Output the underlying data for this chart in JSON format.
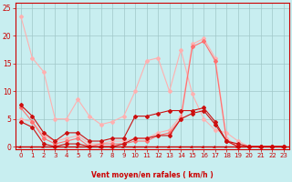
{
  "background_color": "#c8eef0",
  "grid_color": "#a0c8c8",
  "line_color_light_pink": "#ffb0b0",
  "line_color_med_pink": "#ff7070",
  "line_color_dark_red": "#cc1010",
  "xlabel": "Vent moyen/en rafales ( km/h )",
  "xlabel_color": "#cc0000",
  "tick_color": "#cc0000",
  "xlim": [
    -0.5,
    23.5
  ],
  "ylim": [
    -0.5,
    26
  ],
  "yticks": [
    0,
    5,
    10,
    15,
    20,
    25
  ],
  "xticks": [
    0,
    1,
    2,
    3,
    4,
    5,
    6,
    7,
    8,
    9,
    10,
    11,
    12,
    13,
    14,
    15,
    16,
    17,
    18,
    19,
    20,
    21,
    22,
    23
  ],
  "line1_x": [
    0,
    1,
    2,
    3,
    4,
    5,
    6,
    7,
    8,
    9,
    10,
    11,
    12,
    13,
    14,
    15,
    16,
    17,
    18,
    19,
    20,
    21,
    22,
    23
  ],
  "line1_y": [
    23.5,
    16.0,
    13.5,
    5.0,
    5.0,
    8.5,
    5.5,
    4.0,
    4.5,
    5.5,
    10.0,
    15.5,
    16.0,
    10.0,
    17.5,
    9.5,
    5.0,
    3.0,
    2.5,
    1.0,
    0.0,
    0.0,
    0.0,
    0.0
  ],
  "line2_x": [
    0,
    1,
    2,
    3,
    4,
    5,
    6,
    7,
    8,
    9,
    10,
    11,
    12,
    13,
    14,
    15,
    16,
    17,
    18,
    19,
    20,
    21,
    22,
    23
  ],
  "line2_y": [
    7.5,
    5.5,
    2.5,
    1.0,
    2.5,
    2.5,
    1.0,
    1.0,
    1.5,
    1.5,
    5.5,
    5.5,
    6.0,
    6.5,
    6.5,
    6.5,
    7.0,
    4.5,
    1.0,
    0.5,
    0.0,
    0.0,
    0.0,
    0.0
  ],
  "line3_x": [
    0,
    1,
    2,
    3,
    4,
    5,
    6,
    7,
    8,
    9,
    10,
    11,
    12,
    13,
    14,
    15,
    16,
    17,
    18,
    19,
    20,
    21,
    22,
    23
  ],
  "line3_y": [
    5.0,
    4.5,
    2.0,
    1.0,
    1.5,
    2.0,
    0.5,
    0.5,
    1.0,
    1.0,
    1.5,
    1.5,
    2.5,
    3.0,
    5.5,
    18.5,
    19.5,
    16.0,
    1.5,
    0.0,
    0.0,
    0.0,
    0.0,
    0.0
  ],
  "line4_x": [
    0,
    1,
    2,
    3,
    4,
    5,
    6,
    7,
    8,
    9,
    10,
    11,
    12,
    13,
    14,
    15,
    16,
    17,
    18,
    19,
    20,
    21,
    22,
    23
  ],
  "line4_y": [
    7.0,
    4.5,
    1.5,
    0.5,
    1.0,
    1.5,
    0.0,
    0.5,
    0.5,
    0.5,
    1.0,
    1.0,
    2.0,
    2.5,
    5.0,
    18.0,
    19.0,
    15.5,
    1.0,
    0.0,
    0.0,
    0.0,
    0.0,
    0.0
  ],
  "line5_x": [
    0,
    1,
    2,
    3,
    4,
    5,
    6,
    7,
    8,
    9,
    10,
    11,
    12,
    13,
    14,
    15,
    16,
    17,
    18,
    19,
    20,
    21,
    22,
    23
  ],
  "line5_y": [
    4.5,
    3.5,
    0.5,
    0.0,
    0.5,
    0.5,
    0.0,
    0.0,
    0.0,
    0.5,
    1.5,
    1.5,
    2.0,
    2.0,
    5.0,
    6.0,
    6.5,
    4.0,
    1.0,
    0.0,
    0.0,
    0.0,
    0.0,
    0.0
  ]
}
